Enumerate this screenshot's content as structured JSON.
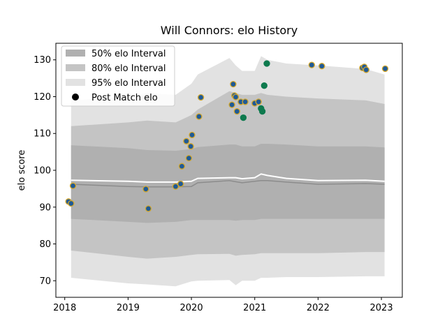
{
  "chart_data": {
    "type": "scatter",
    "title": "Will Connors: elo History",
    "xlabel": "",
    "ylabel": "elo score",
    "xlim": [
      2017.86,
      2023.33
    ],
    "ylim": [
      65.5,
      134.5
    ],
    "xticks": [
      2018,
      2019,
      2020,
      2021,
      2022,
      2023
    ],
    "yticks": [
      70,
      80,
      90,
      100,
      110,
      120,
      130
    ],
    "grid": false,
    "legend_position": "top-left",
    "legend": [
      "50% elo Interval",
      "80% elo Interval",
      "95% elo Interval",
      "Post Match elo"
    ],
    "colors": {
      "band50": "#b0b0b0",
      "band80": "#c4c4c4",
      "band95": "#e2e2e2",
      "median_line": "#8c8c8c",
      "mean_line": "#ffffff",
      "point_fill_blue": "#1f5a96",
      "point_fill_green": "#0e7a4e",
      "point_edge": "#d4a72c"
    },
    "bands": {
      "x": [
        2018.1,
        2019.0,
        2019.3,
        2019.75,
        2020.0,
        2020.1,
        2020.6,
        2020.7,
        2020.8,
        2021.0,
        2021.1,
        2021.2,
        2021.5,
        2022.0,
        2022.75,
        2023.05
      ],
      "p95_high": [
        119.0,
        120.0,
        121.0,
        120.5,
        123.5,
        126.0,
        130.5,
        128.5,
        127.0,
        127.0,
        131.0,
        130.0,
        129.0,
        128.5,
        127.5,
        126.0
      ],
      "p80_high": [
        112.0,
        113.0,
        113.5,
        113.0,
        115.0,
        116.5,
        121.5,
        121.0,
        120.5,
        120.5,
        121.0,
        120.5,
        120.0,
        119.5,
        119.0,
        118.0
      ],
      "p50_high": [
        106.8,
        106.0,
        105.5,
        105.3,
        105.8,
        106.3,
        107.0,
        107.0,
        106.5,
        106.5,
        107.2,
        107.2,
        107.0,
        106.5,
        106.5,
        106.2
      ],
      "p50_low": [
        86.8,
        86.0,
        85.7,
        86.0,
        86.5,
        86.5,
        86.5,
        86.3,
        86.5,
        86.5,
        86.8,
        86.8,
        86.8,
        86.8,
        86.8,
        86.8
      ],
      "p80_low": [
        78.2,
        76.5,
        76.0,
        76.5,
        77.0,
        77.2,
        77.3,
        76.8,
        77.0,
        77.2,
        77.5,
        77.5,
        77.5,
        77.5,
        77.8,
        77.8
      ],
      "p95_low": [
        70.8,
        69.3,
        69.0,
        68.5,
        69.8,
        70.0,
        70.2,
        68.8,
        70.0,
        70.0,
        70.8,
        70.8,
        71.0,
        71.0,
        71.2,
        71.2
      ],
      "median": [
        96.2,
        95.6,
        95.5,
        95.5,
        95.6,
        96.6,
        97.2,
        96.9,
        96.6,
        97.0,
        97.2,
        97.2,
        96.8,
        96.2,
        96.4,
        96.2
      ],
      "mean": [
        97.3,
        97.0,
        96.8,
        96.8,
        97.0,
        97.8,
        98.0,
        98.0,
        97.7,
        98.0,
        99.0,
        98.6,
        97.8,
        97.2,
        97.3,
        97.0
      ]
    },
    "points": [
      {
        "x": 2018.06,
        "y": 91.5,
        "c": "blue"
      },
      {
        "x": 2018.1,
        "y": 91.0,
        "c": "blue"
      },
      {
        "x": 2018.13,
        "y": 95.8,
        "c": "blue"
      },
      {
        "x": 2019.28,
        "y": 94.9,
        "c": "blue"
      },
      {
        "x": 2019.32,
        "y": 89.6,
        "c": "blue"
      },
      {
        "x": 2019.75,
        "y": 95.6,
        "c": "blue"
      },
      {
        "x": 2019.83,
        "y": 96.3,
        "c": "blue"
      },
      {
        "x": 2019.85,
        "y": 101.1,
        "c": "blue"
      },
      {
        "x": 2019.92,
        "y": 107.9,
        "c": "blue"
      },
      {
        "x": 2019.96,
        "y": 103.3,
        "c": "blue"
      },
      {
        "x": 2019.99,
        "y": 106.5,
        "c": "blue"
      },
      {
        "x": 2020.01,
        "y": 109.6,
        "c": "blue"
      },
      {
        "x": 2020.12,
        "y": 114.6,
        "c": "blue"
      },
      {
        "x": 2020.15,
        "y": 119.8,
        "c": "blue"
      },
      {
        "x": 2020.64,
        "y": 117.8,
        "c": "blue"
      },
      {
        "x": 2020.66,
        "y": 123.4,
        "c": "blue"
      },
      {
        "x": 2020.68,
        "y": 120.3,
        "c": "blue"
      },
      {
        "x": 2020.7,
        "y": 119.9,
        "c": "blue"
      },
      {
        "x": 2020.72,
        "y": 116.0,
        "c": "blue"
      },
      {
        "x": 2020.78,
        "y": 118.6,
        "c": "blue"
      },
      {
        "x": 2020.82,
        "y": 114.3,
        "c": "green"
      },
      {
        "x": 2020.85,
        "y": 118.6,
        "c": "blue"
      },
      {
        "x": 2021.0,
        "y": 118.2,
        "c": "blue"
      },
      {
        "x": 2021.06,
        "y": 118.6,
        "c": "blue"
      },
      {
        "x": 2021.1,
        "y": 116.8,
        "c": "green"
      },
      {
        "x": 2021.12,
        "y": 116.0,
        "c": "green"
      },
      {
        "x": 2021.15,
        "y": 123.0,
        "c": "green"
      },
      {
        "x": 2021.19,
        "y": 129.0,
        "c": "green"
      },
      {
        "x": 2021.9,
        "y": 128.6,
        "c": "blue"
      },
      {
        "x": 2022.06,
        "y": 128.3,
        "c": "blue"
      },
      {
        "x": 2022.7,
        "y": 127.8,
        "c": "blue"
      },
      {
        "x": 2022.73,
        "y": 128.1,
        "c": "blue"
      },
      {
        "x": 2022.76,
        "y": 127.3,
        "c": "blue"
      },
      {
        "x": 2023.06,
        "y": 127.6,
        "c": "blue"
      }
    ]
  }
}
